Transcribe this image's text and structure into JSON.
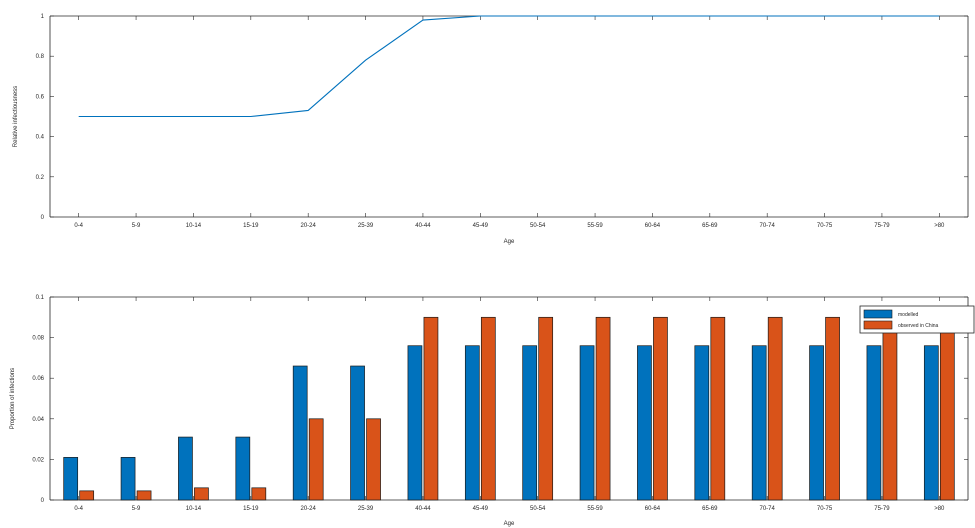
{
  "chart_data": [
    {
      "type": "line",
      "xlabel": "Age",
      "ylabel": "Relative infectiousness",
      "categories": [
        "0-4",
        "5-9",
        "10-14",
        "15-19",
        "20-24",
        "25-39",
        "40-44",
        "45-49",
        "50-54",
        "55-59",
        "60-64",
        "65-69",
        "70-74",
        "70-75",
        "75-79",
        ">80"
      ],
      "ylim": [
        0,
        1
      ],
      "yticks": [
        "0",
        "0.2",
        "0.4",
        "0.6",
        "0.8",
        "1"
      ],
      "grid": false,
      "series": [
        {
          "values": [
            0.5,
            0.5,
            0.5,
            0.5,
            0.53,
            0.78,
            0.98,
            1.0,
            1.0,
            1.0,
            1.0,
            1.0,
            1.0,
            1.0,
            1.0,
            1.0
          ]
        }
      ],
      "colors": [
        "#0072BD"
      ]
    },
    {
      "type": "bar",
      "xlabel": "Age",
      "ylabel": "Proportion of infections",
      "categories": [
        "0-4",
        "5-9",
        "10-14",
        "15-19",
        "20-24",
        "25-39",
        "40-44",
        "45-49",
        "50-54",
        "55-59",
        "60-64",
        "65-69",
        "70-74",
        "70-75",
        "75-79",
        ">80"
      ],
      "ylim": [
        0,
        0.1
      ],
      "yticks": [
        "0",
        "0.02",
        "0.04",
        "0.06",
        "0.08",
        "0.1"
      ],
      "grid": false,
      "legend_position": "top-right",
      "series": [
        {
          "name": "modelled",
          "values": [
            0.021,
            0.021,
            0.031,
            0.031,
            0.066,
            0.066,
            0.076,
            0.076,
            0.076,
            0.076,
            0.076,
            0.076,
            0.076,
            0.076,
            0.076,
            0.076
          ]
        },
        {
          "name": "observed in China",
          "values": [
            0.0045,
            0.0045,
            0.006,
            0.006,
            0.04,
            0.04,
            0.09,
            0.09,
            0.09,
            0.09,
            0.09,
            0.09,
            0.09,
            0.09,
            0.09,
            0.09
          ]
        }
      ],
      "colors": [
        "#0072BD",
        "#D95319"
      ]
    }
  ]
}
